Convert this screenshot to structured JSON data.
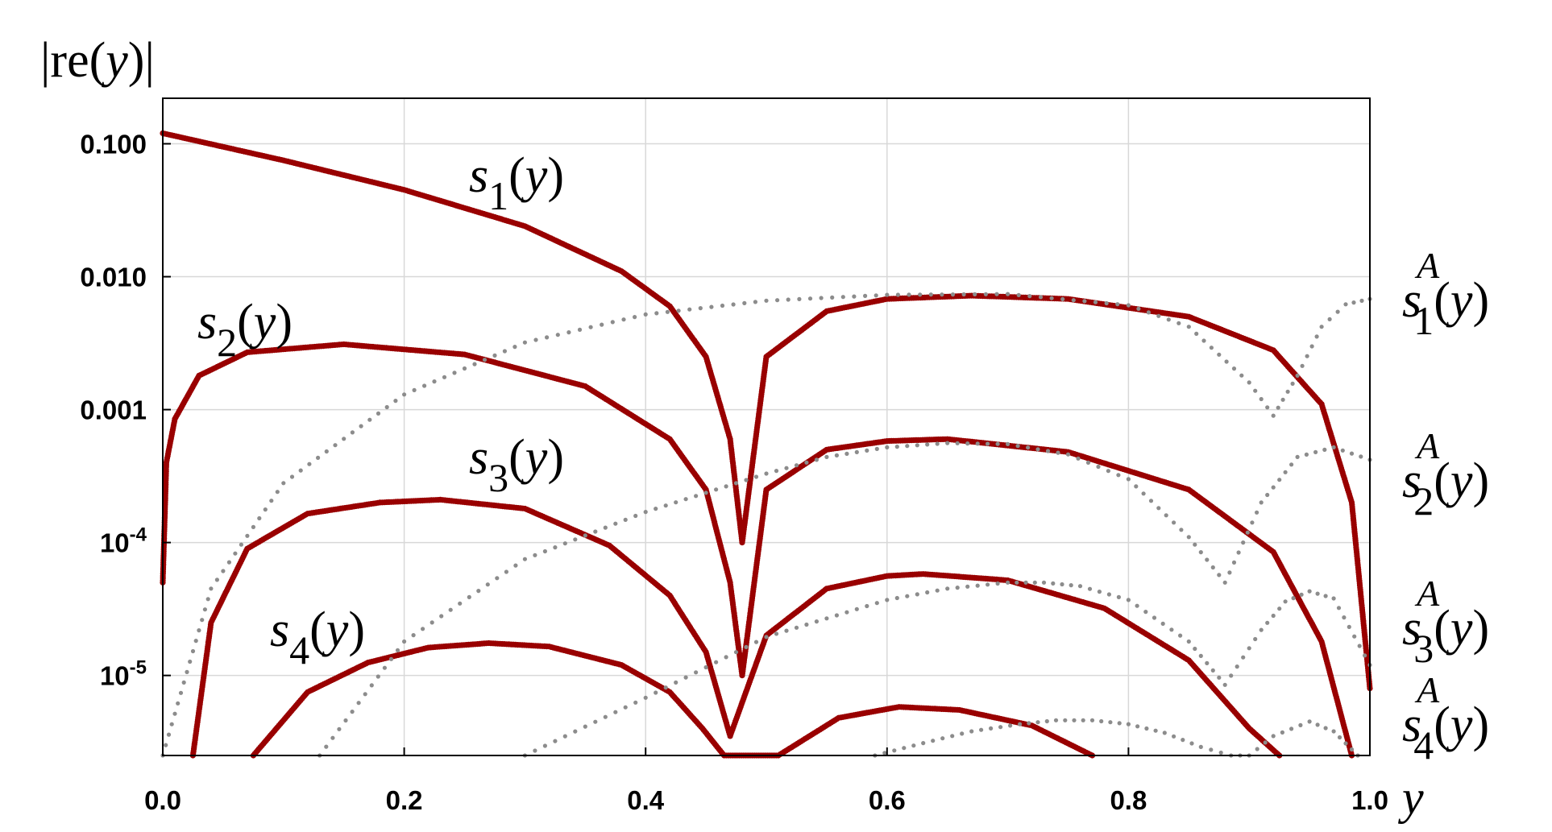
{
  "chart_data": {
    "type": "scatter",
    "y_scale": "log",
    "grid": true,
    "xlim": [
      0,
      1
    ],
    "ylim": [
      2.5e-06,
      0.22
    ],
    "ylabel": {
      "abs": "|",
      "re": "re",
      "lpar": "(",
      "var": "y",
      "rpar": ")"
    },
    "xlabel": "y",
    "x_ticks": [
      {
        "value": 0.0,
        "label": "0.0"
      },
      {
        "value": 0.2,
        "label": "0.2"
      },
      {
        "value": 0.4,
        "label": "0.4"
      },
      {
        "value": 0.6,
        "label": "0.6"
      },
      {
        "value": 0.8,
        "label": "0.8"
      },
      {
        "value": 1.0,
        "label": "1.0"
      }
    ],
    "y_ticks": [
      {
        "value": 0.1,
        "label": "0.100",
        "base": "",
        "exp": ""
      },
      {
        "value": 0.01,
        "label": "0.010",
        "base": "",
        "exp": ""
      },
      {
        "value": 0.001,
        "label": "0.001",
        "base": "",
        "exp": ""
      },
      {
        "value": 0.0001,
        "label": "",
        "base": "10",
        "exp": "-4"
      },
      {
        "value": 1e-05,
        "label": "",
        "base": "10",
        "exp": "-5"
      }
    ],
    "colors": {
      "s": "#990000",
      "sA": "#8c8c8c",
      "grid": "#d8d8d8"
    },
    "series": [
      {
        "name": "s1(y)",
        "key": "s1",
        "style": "s",
        "label": {
          "base": "s",
          "sub": "1",
          "sup": "",
          "arg": "(y)"
        },
        "x": [
          0.0,
          0.1,
          0.2,
          0.3,
          0.38,
          0.42,
          0.45,
          0.47,
          0.48,
          0.5,
          0.55,
          0.6,
          0.67,
          0.75,
          0.85,
          0.92,
          0.96,
          0.985,
          1.0
        ],
        "y": [
          0.12,
          0.075,
          0.045,
          0.024,
          0.011,
          0.006,
          0.0025,
          0.0006,
          0.0001,
          0.0025,
          0.0055,
          0.0068,
          0.0072,
          0.0068,
          0.005,
          0.0028,
          0.0011,
          0.0002,
          8e-06
        ]
      },
      {
        "name": "s2(y)",
        "key": "s2",
        "style": "s",
        "label": {
          "base": "s",
          "sub": "2",
          "sup": "",
          "arg": "(y)"
        },
        "x": [
          0.0,
          0.003,
          0.01,
          0.03,
          0.07,
          0.15,
          0.25,
          0.35,
          0.42,
          0.45,
          0.47,
          0.48,
          0.5,
          0.55,
          0.6,
          0.65,
          0.75,
          0.85,
          0.92,
          0.96,
          0.985
        ],
        "y": [
          5e-05,
          0.0004,
          0.00085,
          0.0018,
          0.0027,
          0.0031,
          0.0026,
          0.0015,
          0.0006,
          0.00025,
          5e-05,
          1e-05,
          0.00025,
          0.0005,
          0.00058,
          0.0006,
          0.00048,
          0.00025,
          8.5e-05,
          1.8e-05,
          2.5e-06
        ]
      },
      {
        "name": "s3(y)",
        "key": "s3",
        "style": "s",
        "label": {
          "base": "s",
          "sub": "3",
          "sup": "",
          "arg": "(y)"
        },
        "x": [
          0.025,
          0.04,
          0.07,
          0.12,
          0.18,
          0.23,
          0.3,
          0.37,
          0.42,
          0.45,
          0.47,
          0.5,
          0.55,
          0.6,
          0.63,
          0.7,
          0.78,
          0.85,
          0.9,
          0.925
        ],
        "y": [
          2.5e-06,
          2.5e-05,
          9e-05,
          0.000165,
          0.0002,
          0.00021,
          0.00018,
          9.5e-05,
          4e-05,
          1.5e-05,
          3.5e-06,
          2e-05,
          4.5e-05,
          5.6e-05,
          5.8e-05,
          5.2e-05,
          3.2e-05,
          1.3e-05,
          4e-06,
          2.5e-06
        ]
      },
      {
        "name": "s4(y)",
        "key": "s4",
        "style": "s",
        "label": {
          "base": "s",
          "sub": "4",
          "sup": "",
          "arg": "(y)"
        },
        "x": [
          0.075,
          0.12,
          0.17,
          0.22,
          0.27,
          0.32,
          0.38,
          0.42,
          0.447,
          0.465,
          0.51,
          0.56,
          0.61,
          0.66,
          0.72,
          0.77
        ],
        "y": [
          2.5e-06,
          7.5e-06,
          1.25e-05,
          1.62e-05,
          1.75e-05,
          1.65e-05,
          1.2e-05,
          7.5e-06,
          4e-06,
          2.5e-06,
          2.5e-06,
          4.8e-06,
          5.8e-06,
          5.5e-06,
          4.2e-06,
          2.5e-06
        ]
      },
      {
        "name": "s1A(y)",
        "key": "s1A",
        "style": "sA",
        "label": {
          "base": "s",
          "sub": "1",
          "sup": "A",
          "arg": "(y)"
        },
        "x": [
          0.0,
          0.04,
          0.1,
          0.2,
          0.3,
          0.4,
          0.5,
          0.6,
          0.7,
          0.8,
          0.85,
          0.9,
          0.92,
          0.94,
          0.96,
          0.98,
          1.0
        ],
        "y": [
          2.5e-06,
          4.5e-05,
          0.00028,
          0.0013,
          0.0032,
          0.0052,
          0.0066,
          0.0073,
          0.0074,
          0.0061,
          0.0042,
          0.0016,
          0.0009,
          0.0018,
          0.0042,
          0.0062,
          0.0068
        ]
      },
      {
        "name": "s2A(y)",
        "key": "s2A",
        "style": "sA",
        "label": {
          "base": "s",
          "sub": "2",
          "sup": "A",
          "arg": "(y)"
        },
        "x": [
          0.13,
          0.2,
          0.3,
          0.4,
          0.5,
          0.55,
          0.6,
          0.65,
          0.7,
          0.75,
          0.8,
          0.85,
          0.88,
          0.91,
          0.94,
          0.97,
          1.0
        ],
        "y": [
          2.5e-06,
          1.8e-05,
          7.5e-05,
          0.00017,
          0.00033,
          0.00044,
          0.00052,
          0.00056,
          0.00055,
          0.00046,
          0.0003,
          0.00011,
          5e-05,
          0.0002,
          0.00044,
          0.00052,
          0.00042
        ]
      },
      {
        "name": "s3A(y)",
        "key": "s3A",
        "style": "sA",
        "label": {
          "base": "s",
          "sub": "3",
          "sup": "A",
          "arg": "(y)"
        },
        "x": [
          0.3,
          0.4,
          0.5,
          0.6,
          0.65,
          0.7,
          0.73,
          0.76,
          0.8,
          0.85,
          0.88,
          0.91,
          0.93,
          0.95,
          0.97,
          1.0
        ],
        "y": [
          2.5e-06,
          6.8e-06,
          1.95e-05,
          3.7e-05,
          4.5e-05,
          5e-05,
          5e-05,
          4.7e-05,
          3.7e-05,
          1.8e-05,
          8.5e-06,
          2.2e-05,
          3.6e-05,
          4.3e-05,
          3.8e-05,
          1.2e-05
        ]
      },
      {
        "name": "s4A(y)",
        "key": "s4A",
        "style": "sA",
        "label": {
          "base": "s",
          "sub": "4",
          "sup": "A",
          "arg": "(y)"
        },
        "x": [
          0.59,
          0.63,
          0.67,
          0.71,
          0.74,
          0.77,
          0.8,
          0.83,
          0.86,
          0.885,
          0.9,
          0.92,
          0.95,
          0.97,
          0.99
        ],
        "y": [
          2.5e-06,
          3.1e-06,
          3.8e-06,
          4.3e-06,
          4.6e-06,
          4.6e-06,
          4.3e-06,
          3.7e-06,
          2.9e-06,
          2.5e-06,
          2.5e-06,
          3.5e-06,
          4.5e-06,
          3.8e-06,
          2.5e-06
        ]
      }
    ]
  }
}
